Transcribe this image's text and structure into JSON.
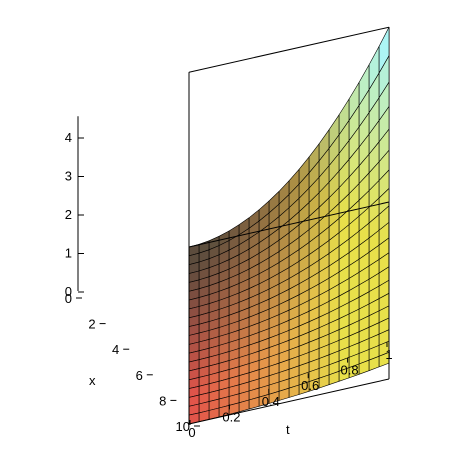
{
  "chart_data": {
    "type": "surface3d",
    "title": "",
    "xlabel": "t",
    "ylabel": "x",
    "zlabel": "",
    "x_axis": {
      "name": "t",
      "range": [
        0,
        1
      ],
      "ticks": [
        "0",
        "0.2",
        "0.4",
        "0.6",
        "0.8",
        "1"
      ]
    },
    "y_axis": {
      "name": "x",
      "range": [
        0,
        10
      ],
      "ticks": [
        "0",
        "2",
        "4",
        "6",
        "8",
        "10"
      ]
    },
    "z_axis": {
      "name": "",
      "range": [
        0,
        4.6
      ],
      "ticks": [
        "0",
        "1",
        "2",
        "3",
        "4"
      ]
    },
    "grid": {
      "t_lines": 21,
      "x_lines": 21
    },
    "surface_peak": {
      "t": 1,
      "x": 0,
      "z": 4.6
    },
    "box": true,
    "colors": {
      "low": "#e2504a",
      "mid": "#e8e04a",
      "high": "#a8f6ff",
      "dark": "#3a4a3a",
      "mesh": "#000000"
    }
  }
}
